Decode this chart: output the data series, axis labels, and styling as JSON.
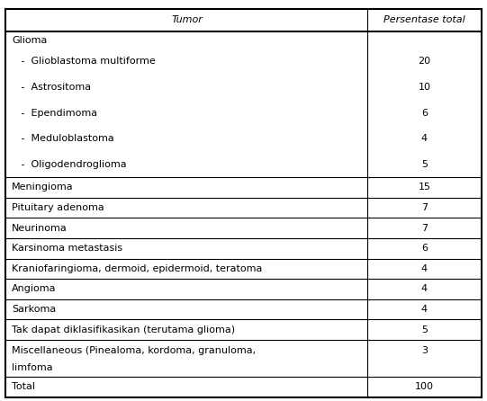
{
  "title_col1": "Tumor",
  "title_col2": "Persentase total",
  "rows": [
    {
      "label": "Glioma",
      "value": "",
      "sub": false,
      "bottom_border": false
    },
    {
      "label": "   -  Glioblastoma multiforme",
      "value": "20",
      "sub": true,
      "bottom_border": false
    },
    {
      "label": "   -  Astrositoma",
      "value": "10",
      "sub": true,
      "bottom_border": false
    },
    {
      "label": "   -  Ependimoma",
      "value": "6",
      "sub": true,
      "bottom_border": false
    },
    {
      "label": "   -  Meduloblastoma",
      "value": "4",
      "sub": true,
      "bottom_border": false
    },
    {
      "label": "   -  Oligodendroglioma",
      "value": "5",
      "sub": true,
      "bottom_border": true
    },
    {
      "label": "Meningioma",
      "value": "15",
      "sub": false,
      "bottom_border": true
    },
    {
      "label": "Pituitary adenoma",
      "value": "7",
      "sub": false,
      "bottom_border": true
    },
    {
      "label": "Neurinoma",
      "value": "7",
      "sub": false,
      "bottom_border": true
    },
    {
      "label": "Karsinoma metastasis",
      "value": "6",
      "sub": false,
      "bottom_border": true
    },
    {
      "label": "Kraniofaringioma, dermoid, epidermoid, teratoma",
      "value": "4",
      "sub": false,
      "bottom_border": true
    },
    {
      "label": "Angioma",
      "value": "4",
      "sub": false,
      "bottom_border": true
    },
    {
      "label": "Sarkoma",
      "value": "4",
      "sub": false,
      "bottom_border": true
    },
    {
      "label": "Tak dapat diklasifikasikan (terutama glioma)",
      "value": "5",
      "sub": false,
      "bottom_border": true
    },
    {
      "label": "Miscellaneous (Pinealoma, kordoma, granuloma,\nlimfoma",
      "value": "3",
      "sub": false,
      "bottom_border": true
    },
    {
      "label": "Total",
      "value": "100",
      "sub": false,
      "bottom_border": false
    }
  ],
  "col_split": 0.755,
  "bg_color": "#ffffff",
  "text_color": "#000000",
  "border_color": "#000000",
  "font_size": 8.0,
  "header_font_size": 8.0,
  "fig_width": 5.41,
  "fig_height": 4.46,
  "dpi": 100
}
